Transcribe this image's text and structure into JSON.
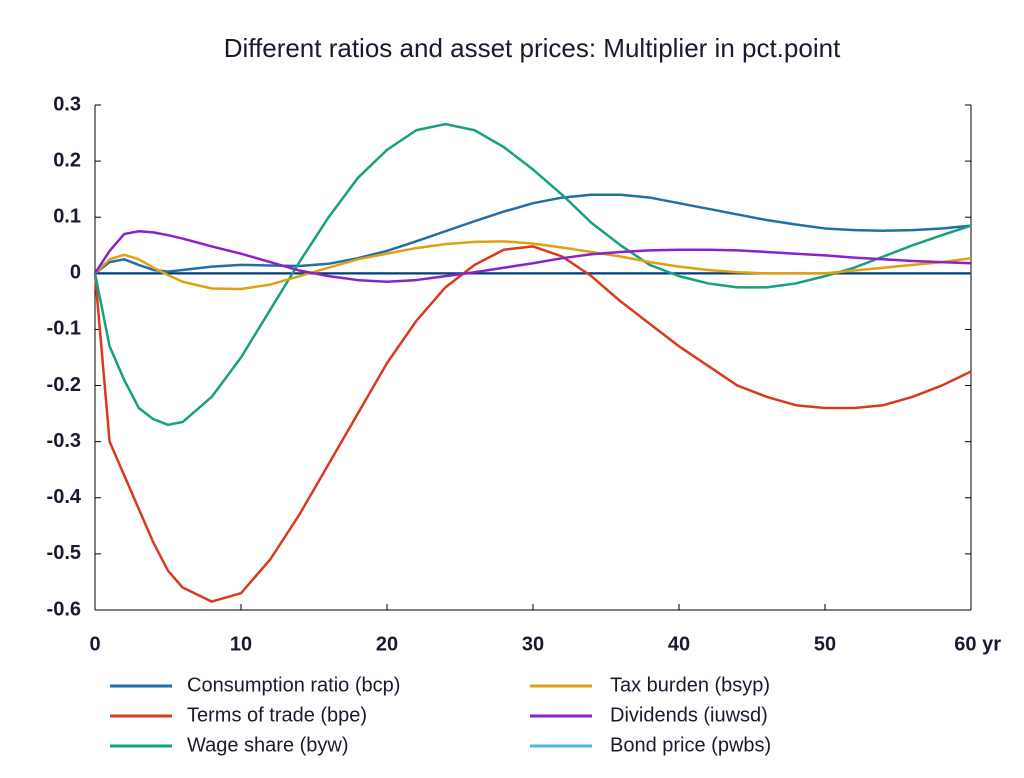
{
  "chart_data": {
    "type": "line",
    "title": "Different ratios and asset prices: Multiplier in pct.point",
    "x": [
      0,
      1,
      2,
      3,
      4,
      5,
      6,
      8,
      10,
      12,
      14,
      16,
      18,
      20,
      22,
      24,
      26,
      28,
      30,
      32,
      34,
      36,
      38,
      40,
      42,
      44,
      46,
      48,
      50,
      52,
      54,
      56,
      58,
      60
    ],
    "series": [
      {
        "name": "Consumption ratio (bcp)",
        "color": "#1f6fa8",
        "values": [
          0,
          0.02,
          0.025,
          0.015,
          0.006,
          0.003,
          0.006,
          0.012,
          0.015,
          0.014,
          0.013,
          0.017,
          0.027,
          0.04,
          0.057,
          0.075,
          0.093,
          0.11,
          0.125,
          0.135,
          0.14,
          0.14,
          0.135,
          0.125,
          0.115,
          0.105,
          0.095,
          0.087,
          0.08,
          0.077,
          0.076,
          0.077,
          0.08,
          0.085
        ]
      },
      {
        "name": "Terms of trade (bpe)",
        "color": "#d93a1e",
        "values": [
          0,
          -0.3,
          -0.36,
          -0.42,
          -0.48,
          -0.53,
          -0.56,
          -0.585,
          -0.57,
          -0.51,
          -0.43,
          -0.34,
          -0.25,
          -0.16,
          -0.085,
          -0.025,
          0.015,
          0.042,
          0.048,
          0.03,
          -0.005,
          -0.05,
          -0.09,
          -0.13,
          -0.165,
          -0.2,
          -0.22,
          -0.235,
          -0.24,
          -0.24,
          -0.235,
          -0.22,
          -0.2,
          -0.175
        ]
      },
      {
        "name": "Wage share (byw)",
        "color": "#16a080",
        "values": [
          0,
          -0.13,
          -0.19,
          -0.24,
          -0.26,
          -0.27,
          -0.265,
          -0.22,
          -0.15,
          -0.065,
          0.02,
          0.1,
          0.17,
          0.22,
          0.255,
          0.266,
          0.255,
          0.225,
          0.185,
          0.14,
          0.09,
          0.05,
          0.015,
          -0.005,
          -0.018,
          -0.025,
          -0.025,
          -0.018,
          -0.005,
          0.01,
          0.03,
          0.05,
          0.068,
          0.085
        ]
      },
      {
        "name": "Tax burden (bsyp)",
        "color": "#e0a010",
        "values": [
          0,
          0.025,
          0.033,
          0.025,
          0.01,
          -0.003,
          -0.015,
          -0.027,
          -0.028,
          -0.02,
          -0.005,
          0.01,
          0.025,
          0.035,
          0.045,
          0.052,
          0.056,
          0.057,
          0.053,
          0.046,
          0.038,
          0.03,
          0.02,
          0.012,
          0.006,
          0.002,
          0,
          0,
          0,
          0.005,
          0.01,
          0.015,
          0.02,
          0.027
        ]
      },
      {
        "name": "Dividends (iuwsd)",
        "color": "#8a22c8",
        "values": [
          0,
          0.04,
          0.07,
          0.075,
          0.073,
          0.068,
          0.062,
          0.048,
          0.035,
          0.02,
          0.005,
          -0.005,
          -0.012,
          -0.015,
          -0.012,
          -0.005,
          0.002,
          0.01,
          0.018,
          0.027,
          0.034,
          0.038,
          0.041,
          0.042,
          0.042,
          0.041,
          0.038,
          0.035,
          0.032,
          0.028,
          0.025,
          0.022,
          0.02,
          0.018
        ]
      },
      {
        "name": "Bond price (pwbs)",
        "color": "#4fb3e8",
        "values": [
          0,
          0,
          0,
          0,
          0,
          0,
          0,
          0,
          0,
          0,
          0,
          0,
          0,
          0,
          0,
          0,
          0,
          0,
          0,
          0,
          0,
          0,
          0,
          0,
          0,
          0,
          0,
          0,
          0,
          0,
          0,
          0,
          0,
          0
        ]
      }
    ],
    "xlim": [
      0,
      60
    ],
    "xticks": [
      0,
      10,
      20,
      30,
      40,
      50,
      {
        "value": 60,
        "label": "60 yr"
      }
    ],
    "ylim": [
      -0.6,
      0.3
    ],
    "yticks": [
      0.3,
      0.2,
      0.1,
      0,
      -0.1,
      -0.2,
      -0.3,
      -0.4,
      -0.5,
      -0.6
    ]
  }
}
